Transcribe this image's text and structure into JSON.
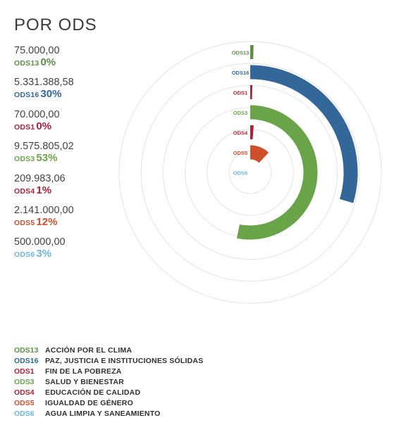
{
  "title": "POR ODS",
  "colors": {
    "ODS13": "#5a8f45",
    "ODS16": "#336699",
    "ODS1": "#b01f38",
    "ODS3": "#6aa448",
    "ODS4": "#b01f38",
    "ODS5": "#cf4f2c",
    "ODS6": "#6cb4dd"
  },
  "stats": [
    {
      "code": "ODS13",
      "value": "75.000,00",
      "pct": "0%"
    },
    {
      "code": "ODS16",
      "value": "5.331.388,58",
      "pct": "30%"
    },
    {
      "code": "ODS1",
      "value": "70.000,00",
      "pct": "0%"
    },
    {
      "code": "ODS3",
      "value": "9.575.805,02",
      "pct": "53%"
    },
    {
      "code": "ODS4",
      "value": "209.983,06",
      "pct": "1%"
    },
    {
      "code": "ODS5",
      "value": "2.141.000,00",
      "pct": "12%"
    },
    {
      "code": "ODS6",
      "value": "500.000,00",
      "pct": "3%"
    }
  ],
  "legend": [
    {
      "code": "ODS13",
      "name": "ACCIÓN POR EL CLIMA"
    },
    {
      "code": "ODS16",
      "name": "PAZ, JUSTICIA E INSTITUCIONES SÓLIDAS"
    },
    {
      "code": "ODS1",
      "name": "FIN DE LA POBREZA"
    },
    {
      "code": "ODS3",
      "name": "SALUD Y BIENESTAR"
    },
    {
      "code": "ODS4",
      "name": "EDUCACIÓN DE CALIDAD"
    },
    {
      "code": "ODS5",
      "name": "IGUALDAD DE GÉNERO"
    },
    {
      "code": "ODS6",
      "name": "AGUA LIMPIA Y SANEAMIENTO"
    }
  ],
  "chart_data": {
    "type": "radial-bar",
    "title": "POR ODS",
    "categories": [
      "ODS13",
      "ODS16",
      "ODS1",
      "ODS3",
      "ODS4",
      "ODS5",
      "ODS6"
    ],
    "values": [
      75000.0,
      5331388.58,
      70000.0,
      9575805.02,
      209983.06,
      2141000.0,
      500000.0
    ],
    "percent": [
      0,
      30,
      0,
      53,
      1,
      12,
      3
    ],
    "max_scale": 18000000,
    "grid": true,
    "legend_position": "bottom"
  }
}
